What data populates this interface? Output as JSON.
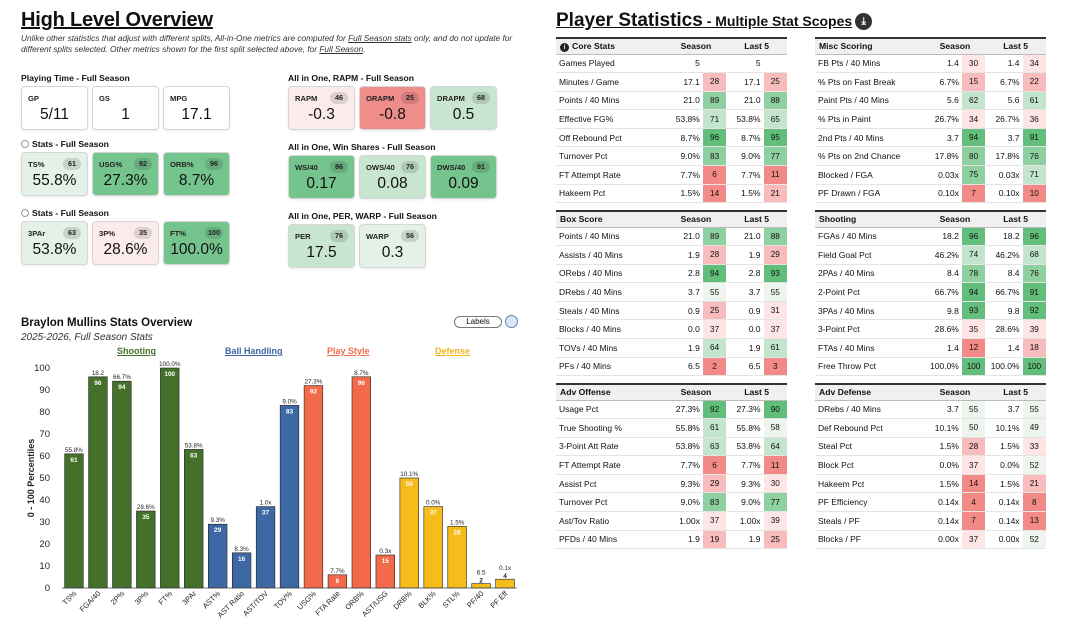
{
  "overview": {
    "title": "High Level Overview",
    "note_parts": [
      "Unlike other statistics that adjust with different splits, All-in-One metrics are computed for ",
      "Full Season stats",
      " only, and do not update for different splits selected. Other metrics shown for the first split selected above, for ",
      "Full Season",
      "."
    ],
    "groups": [
      {
        "label": "Playing Time - Full Season",
        "radio": false,
        "cards": [
          {
            "name": "GP",
            "value": "5/11",
            "pct": null,
            "color": "plain"
          },
          {
            "name": "GS",
            "value": "1",
            "pct": null,
            "color": "plain"
          },
          {
            "name": "MPG",
            "value": "17.1",
            "pct": null,
            "color": "plain"
          }
        ]
      },
      {
        "label": "Stats - Full Season",
        "radio": true,
        "cards": [
          {
            "name": "TS%",
            "value": "55.8%",
            "pct": "61",
            "color": "g1"
          },
          {
            "name": "USG%",
            "value": "27.3%",
            "pct": "92",
            "color": "g3"
          },
          {
            "name": "ORB%",
            "value": "8.7%",
            "pct": "96",
            "color": "g3"
          }
        ]
      },
      {
        "label": "Stats - Full Season",
        "radio": true,
        "cards": [
          {
            "name": "3PAr",
            "value": "53.8%",
            "pct": "63",
            "color": "g1"
          },
          {
            "name": "3P%",
            "value": "28.6%",
            "pct": "35",
            "color": "r1"
          },
          {
            "name": "FT%",
            "value": "100.0%",
            "pct": "100",
            "color": "g3"
          }
        ]
      },
      {
        "label": "All in One, RAPM - Full Season",
        "radio": false,
        "cards": [
          {
            "name": "RAPM",
            "value": "-0.3",
            "pct": "46",
            "color": "r1"
          },
          {
            "name": "ORAPM",
            "value": "-0.8",
            "pct": "25",
            "color": "r3"
          },
          {
            "name": "DRAPM",
            "value": "0.5",
            "pct": "68",
            "color": "g2"
          }
        ]
      },
      {
        "label": "All in One, Win Shares - Full Season",
        "radio": false,
        "cards": [
          {
            "name": "WS/40",
            "value": "0.17",
            "pct": "86",
            "color": "g3"
          },
          {
            "name": "OWS/40",
            "value": "0.08",
            "pct": "76",
            "color": "g2"
          },
          {
            "name": "DWS/40",
            "value": "0.09",
            "pct": "91",
            "color": "g3"
          }
        ]
      },
      {
        "label": "All in One, PER, WARP - Full Season",
        "radio": false,
        "cards": [
          {
            "name": "PER",
            "value": "17.5",
            "pct": "76",
            "color": "g2"
          },
          {
            "name": "WARP",
            "value": "0.3",
            "pct": "56",
            "color": "g1"
          }
        ]
      }
    ]
  },
  "chart_data": {
    "type": "bar",
    "title": "Braylon Mullins Stats Overview",
    "subtitle": "2025-2026, Full Season Stats",
    "ylabel": "0 - 100 Percentiles",
    "ylim": [
      0,
      100
    ],
    "yticks": [
      0,
      10,
      20,
      30,
      40,
      50,
      60,
      70,
      80,
      90,
      100
    ],
    "labels_button": "Labels",
    "groups": [
      {
        "name": "Shooting",
        "color": "#44712a"
      },
      {
        "name": "Ball Handling",
        "color": "#3d68a4"
      },
      {
        "name": "Play Style",
        "color": "#f36a4a"
      },
      {
        "name": "Defense",
        "color": "#f5bc1c"
      }
    ],
    "bars": [
      {
        "cat": "TS%",
        "pct": 61,
        "raw": "55.8%",
        "group": 0
      },
      {
        "cat": "FGA/40",
        "pct": 96,
        "raw": "18.2",
        "group": 0
      },
      {
        "cat": "2P%",
        "pct": 94,
        "raw": "66.7%",
        "group": 0
      },
      {
        "cat": "3P%",
        "pct": 35,
        "raw": "28.6%",
        "group": 0
      },
      {
        "cat": "FT%",
        "pct": 100,
        "raw": "100.0%",
        "group": 0
      },
      {
        "cat": "3PAr",
        "pct": 63,
        "raw": "53.8%",
        "group": 0
      },
      {
        "cat": "AST%",
        "pct": 29,
        "raw": "9.3%",
        "group": 1
      },
      {
        "cat": "AST Ratio",
        "pct": 16,
        "raw": "8.3%",
        "group": 1
      },
      {
        "cat": "AST/TOV",
        "pct": 37,
        "raw": "1.0x",
        "group": 1
      },
      {
        "cat": "TOV%",
        "pct": 83,
        "raw": "9.0%",
        "group": 1
      },
      {
        "cat": "USG%",
        "pct": 92,
        "raw": "27.3%",
        "group": 2
      },
      {
        "cat": "FTA Rate",
        "pct": 6,
        "raw": "7.7%",
        "group": 2
      },
      {
        "cat": "ORB%",
        "pct": 96,
        "raw": "8.7%",
        "group": 2
      },
      {
        "cat": "AST/USG",
        "pct": 15,
        "raw": "0.3x",
        "group": 2
      },
      {
        "cat": "DRB%",
        "pct": 50,
        "raw": "10.1%",
        "group": 3
      },
      {
        "cat": "BLK%",
        "pct": 37,
        "raw": "0.0%",
        "group": 3
      },
      {
        "cat": "STL%",
        "pct": 28,
        "raw": "1.5%",
        "group": 3
      },
      {
        "cat": "PF/40",
        "pct": 2,
        "raw": "6.5",
        "group": 3
      },
      {
        "cat": "PF Eff",
        "pct": 4,
        "raw": "0.1x",
        "group": 3
      }
    ]
  },
  "player_stats": {
    "title": "Player Statistics",
    "subtitle": " - Multiple Stat Scopes",
    "download_icon": "download-icon",
    "col_season": "Season",
    "col_last5": "Last 5",
    "tables": [
      {
        "title": "Core Stats",
        "info": true,
        "rows": [
          [
            "Games Played",
            "5",
            "",
            "5",
            ""
          ],
          [
            "Minutes / Game",
            "17.1",
            "28",
            "17.1",
            "25"
          ],
          [
            "Points / 40 Mins",
            "21.0",
            "89",
            "21.0",
            "88"
          ],
          [
            "Effective FG%",
            "53.8%",
            "71",
            "53.8%",
            "65"
          ],
          [
            "Off Rebound Pct",
            "8.7%",
            "96",
            "8.7%",
            "95"
          ],
          [
            "Turnover Pct",
            "9.0%",
            "83",
            "9.0%",
            "77"
          ],
          [
            "FT Attempt Rate",
            "7.7%",
            "6",
            "7.7%",
            "11"
          ],
          [
            "Hakeem Pct",
            "1.5%",
            "14",
            "1.5%",
            "21"
          ]
        ]
      },
      {
        "title": "Misc Scoring",
        "info": false,
        "rows": [
          [
            "FB Pts / 40 Mins",
            "1.4",
            "30",
            "1.4",
            "34"
          ],
          [
            "% Pts on Fast Break",
            "6.7%",
            "15",
            "6.7%",
            "22"
          ],
          [
            "Paint Pts / 40 Mins",
            "5.6",
            "62",
            "5.6",
            "61"
          ],
          [
            "% Pts in Paint",
            "26.7%",
            "34",
            "26.7%",
            "36"
          ],
          [
            "2nd Pts / 40 Mins",
            "3.7",
            "94",
            "3.7",
            "91"
          ],
          [
            "% Pts on 2nd Chance",
            "17.8%",
            "80",
            "17.8%",
            "76"
          ],
          [
            "Blocked / FGA",
            "0.03x",
            "75",
            "0.03x",
            "71"
          ],
          [
            "PF Drawn / FGA",
            "0.10x",
            "7",
            "0.10x",
            "10"
          ]
        ]
      },
      {
        "title": "Box Score",
        "info": false,
        "rows": [
          [
            "Points / 40 Mins",
            "21.0",
            "89",
            "21.0",
            "88"
          ],
          [
            "Assists / 40 Mins",
            "1.9",
            "28",
            "1.9",
            "29"
          ],
          [
            "ORebs / 40 Mins",
            "2.8",
            "94",
            "2.8",
            "93"
          ],
          [
            "DRebs / 40 Mins",
            "3.7",
            "55",
            "3.7",
            "55"
          ],
          [
            "Steals / 40 Mins",
            "0.9",
            "25",
            "0.9",
            "31"
          ],
          [
            "Blocks / 40 Mins",
            "0.0",
            "37",
            "0.0",
            "37"
          ],
          [
            "TOVs / 40 Mins",
            "1.9",
            "64",
            "1.9",
            "61"
          ],
          [
            "PFs / 40 Mins",
            "6.5",
            "2",
            "6.5",
            "3"
          ]
        ]
      },
      {
        "title": "Shooting",
        "info": false,
        "rows": [
          [
            "FGAs / 40 Mins",
            "18.2",
            "96",
            "18.2",
            "96"
          ],
          [
            "Field Goal Pct",
            "46.2%",
            "74",
            "46.2%",
            "68"
          ],
          [
            "2PAs / 40 Mins",
            "8.4",
            "78",
            "8.4",
            "76"
          ],
          [
            "2-Point Pct",
            "66.7%",
            "94",
            "66.7%",
            "91"
          ],
          [
            "3PAs / 40 Mins",
            "9.8",
            "93",
            "9.8",
            "92"
          ],
          [
            "3-Point Pct",
            "28.6%",
            "35",
            "28.6%",
            "39"
          ],
          [
            "FTAs / 40 Mins",
            "1.4",
            "12",
            "1.4",
            "18"
          ],
          [
            "Free Throw Pct",
            "100.0%",
            "100",
            "100.0%",
            "100"
          ]
        ]
      },
      {
        "title": "Adv Offense",
        "info": false,
        "rows": [
          [
            "Usage Pct",
            "27.3%",
            "92",
            "27.3%",
            "90"
          ],
          [
            "True Shooting %",
            "55.8%",
            "61",
            "55.8%",
            "58"
          ],
          [
            "3-Point Att Rate",
            "53.8%",
            "63",
            "53.8%",
            "64"
          ],
          [
            "FT Attempt Rate",
            "7.7%",
            "6",
            "7.7%",
            "11"
          ],
          [
            "Assist Pct",
            "9.3%",
            "29",
            "9.3%",
            "30"
          ],
          [
            "Turnover Pct",
            "9.0%",
            "83",
            "9.0%",
            "77"
          ],
          [
            "Ast/Tov Ratio",
            "1.00x",
            "37",
            "1.00x",
            "39"
          ],
          [
            "PFDs / 40 Mins",
            "1.9",
            "19",
            "1.9",
            "25"
          ]
        ]
      },
      {
        "title": "Adv Defense",
        "info": false,
        "rows": [
          [
            "DRebs / 40 Mins",
            "3.7",
            "55",
            "3.7",
            "55"
          ],
          [
            "Def Rebound Pct",
            "10.1%",
            "50",
            "10.1%",
            "49"
          ],
          [
            "Steal Pct",
            "1.5%",
            "28",
            "1.5%",
            "33"
          ],
          [
            "Block Pct",
            "0.0%",
            "37",
            "0.0%",
            "52"
          ],
          [
            "Hakeem Pct",
            "1.5%",
            "14",
            "1.5%",
            "21"
          ],
          [
            "PF Efficiency",
            "0.14x",
            "4",
            "0.14x",
            "8"
          ],
          [
            "Steals / PF",
            "0.14x",
            "7",
            "0.14x",
            "13"
          ],
          [
            "Blocks / PF",
            "0.00x",
            "37",
            "0.00x",
            "52"
          ]
        ]
      }
    ]
  }
}
